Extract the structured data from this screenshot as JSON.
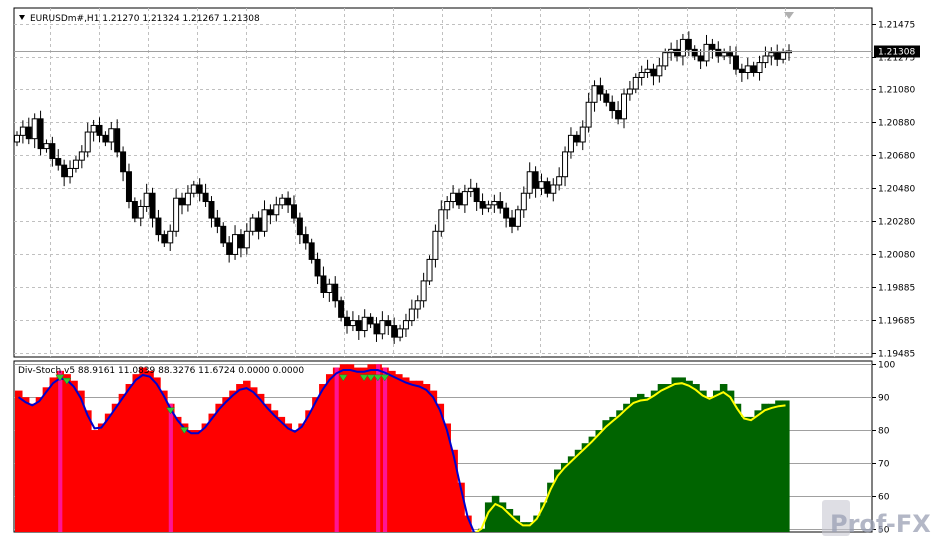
{
  "window": {
    "symbol_header": "EURUSDm#,H1  1.21270 1.21324 1.21267 1.21308",
    "current_price_tag": "1.21308",
    "watermark": "Prof-FX"
  },
  "colors": {
    "background": "#ffffff",
    "grid": "#c0c0c0",
    "candle": "#000000",
    "bear_hist": "#ff0000",
    "bull_hist": "#006400",
    "signal_bar": "#ff1493",
    "main_line": "#0000cd",
    "main_line_up": "#ffff00",
    "arrow": "#32cd32"
  },
  "chart_data": [
    {
      "type": "candlestick",
      "title": "EURUSDm#,H1",
      "ohlc_header": {
        "open": 1.2127,
        "high": 1.21324,
        "low": 1.21267,
        "close": 1.21308
      },
      "y_ticks": [
        "1.21475",
        "1.21275",
        "1.21080",
        "1.20880",
        "1.20680",
        "1.20480",
        "1.20280",
        "1.20080",
        "1.19885",
        "1.19685",
        "1.19485"
      ],
      "ylim": [
        1.1946,
        1.2157
      ],
      "grid": true,
      "current_price": 1.21308,
      "closes": [
        1.208,
        1.2085,
        1.2078,
        1.209,
        1.2072,
        1.2075,
        1.2066,
        1.2062,
        1.2055,
        1.206,
        1.2065,
        1.207,
        1.2082,
        1.2086,
        1.208,
        1.2076,
        1.2084,
        1.207,
        1.2058,
        1.204,
        1.203,
        1.2037,
        1.2045,
        1.203,
        1.202,
        1.2015,
        1.2022,
        1.2042,
        1.2038,
        1.2045,
        1.205,
        1.2045,
        1.204,
        1.203,
        1.2025,
        1.2015,
        1.2008,
        1.202,
        1.2012,
        1.2022,
        1.203,
        1.2022,
        1.2035,
        1.2032,
        1.2038,
        1.2042,
        1.2038,
        1.203,
        1.202,
        1.2015,
        1.2005,
        1.1995,
        1.1985,
        1.199,
        1.198,
        1.197,
        1.1965,
        1.1968,
        1.1962,
        1.197,
        1.1966,
        1.196,
        1.1968,
        1.1965,
        1.1958,
        1.1963,
        1.1968,
        1.1975,
        1.198,
        1.1992,
        1.2005,
        1.2022,
        1.2035,
        1.204,
        1.2045,
        1.2038,
        1.2046,
        1.2048,
        1.204,
        1.2036,
        1.2038,
        1.204,
        1.2036,
        1.203,
        1.2025,
        1.2035,
        1.2045,
        1.2058,
        1.2048,
        1.2052,
        1.2045,
        1.205,
        1.2055,
        1.207,
        1.208,
        1.2076,
        1.2085,
        1.21,
        1.211,
        1.2105,
        1.21,
        1.2095,
        1.209,
        1.2105,
        1.2108,
        1.2115,
        1.2118,
        1.212,
        1.2116,
        1.2122,
        1.213,
        1.2132,
        1.2128,
        1.2138,
        1.2132,
        1.2128,
        1.2125,
        1.2135,
        1.2132,
        1.2128,
        1.213,
        1.2128,
        1.212,
        1.2118,
        1.2122,
        1.2118,
        1.2124,
        1.2128,
        1.213,
        1.2126,
        1.213,
        1.2131
      ]
    },
    {
      "type": "histogram",
      "title": "Div-Stoch v5",
      "header_values": "Div-Stoch v5 88.9161 11.0839 88.3276 11.6724 0.0000 0.0000",
      "y_ticks": [
        "100",
        "90",
        "80",
        "70",
        "60",
        "50"
      ],
      "ylim": [
        49,
        101
      ],
      "grid": true,
      "values": [
        92,
        90,
        88,
        90,
        93,
        96,
        98,
        97,
        95,
        92,
        86,
        80,
        82,
        85,
        88,
        91,
        94,
        97,
        99,
        98,
        96,
        92,
        88,
        84,
        82,
        80,
        80,
        82,
        85,
        88,
        90,
        92,
        94,
        95,
        93,
        91,
        88,
        86,
        84,
        82,
        80,
        82,
        86,
        90,
        94,
        97,
        99,
        100,
        100,
        99,
        99,
        100,
        100,
        99,
        98,
        97,
        96,
        95,
        95,
        94,
        92,
        88,
        82,
        74,
        64,
        54,
        48,
        50,
        58,
        60,
        58,
        56,
        54,
        52,
        52,
        54,
        58,
        64,
        68,
        70,
        72,
        74,
        76,
        78,
        80,
        83,
        84,
        86,
        88,
        90,
        91,
        90,
        92,
        94,
        94,
        96,
        96,
        95,
        94,
        92,
        90,
        92,
        94,
        92,
        88,
        84,
        84,
        86,
        88,
        88,
        89,
        89
      ],
      "bear_until_index": 66,
      "signal_bar_indices": [
        6,
        22,
        46,
        52,
        53
      ],
      "arrow_indices": [
        6,
        7,
        22,
        24,
        47,
        50,
        51,
        52,
        53
      ]
    }
  ]
}
